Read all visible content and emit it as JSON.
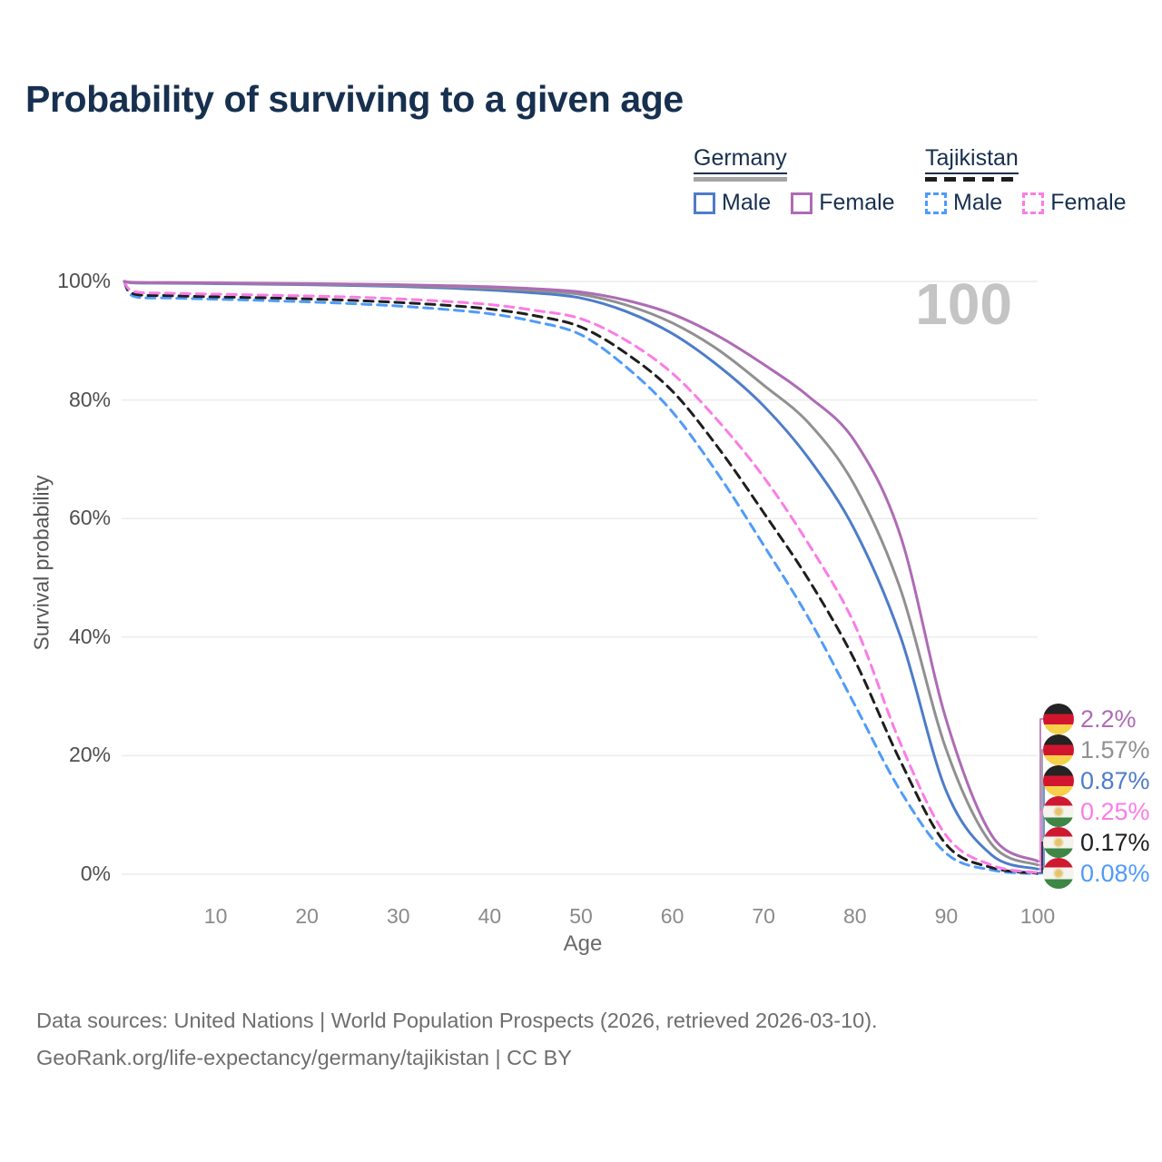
{
  "title": "Probability of surviving to a given age",
  "watermark_label": "100",
  "legend": {
    "groups": [
      {
        "label": "Germany",
        "line_style": "solid",
        "underline_color": "#a5a5a5",
        "items": [
          {
            "label": "Male",
            "color": "#4d7cc9",
            "dashed": false
          },
          {
            "label": "Female",
            "color": "#ae6bb5",
            "dashed": false
          }
        ]
      },
      {
        "label": "Tajikistan",
        "line_style": "dashed",
        "underline_color": "#1e1e1e",
        "items": [
          {
            "label": "Male",
            "color": "#4f9bfa",
            "dashed": true
          },
          {
            "label": "Female",
            "color": "#fb7ce5",
            "dashed": true
          }
        ]
      }
    ]
  },
  "chart_data": {
    "type": "line",
    "title": "Probability of surviving to a given age",
    "xlabel": "Age",
    "ylabel": "Survival probability",
    "xlim": [
      0,
      100
    ],
    "ylim": [
      0,
      100
    ],
    "x_ticks": [
      10,
      20,
      30,
      40,
      50,
      60,
      70,
      80,
      90,
      100
    ],
    "y_ticks": [
      0,
      20,
      40,
      60,
      80,
      100
    ],
    "y_tick_suffix": "%",
    "grid": "horizontal-only",
    "legend_position": "top-right",
    "x": [
      0,
      1,
      5,
      10,
      15,
      20,
      25,
      30,
      35,
      40,
      45,
      50,
      55,
      60,
      65,
      70,
      75,
      80,
      85,
      90,
      95,
      100
    ],
    "series": [
      {
        "id": "germany-female",
        "name": "Germany Female",
        "country": "Germany",
        "group": "Female",
        "color": "#ae6bb5",
        "dashed": false,
        "end_label": "2.2%",
        "flag": "germany",
        "values": [
          100,
          99.85,
          99.8,
          99.75,
          99.7,
          99.63,
          99.55,
          99.45,
          99.3,
          99.1,
          98.75,
          98.2,
          96.8,
          94.5,
          90.8,
          86.0,
          80.5,
          73.0,
          57.0,
          26.0,
          6.5,
          2.2
        ]
      },
      {
        "id": "germany-total",
        "name": "Germany",
        "country": "Germany",
        "group": "Both sexes",
        "color": "#909090",
        "dashed": false,
        "end_label": "1.57%",
        "flag": "germany",
        "values": [
          100,
          99.8,
          99.75,
          99.7,
          99.63,
          99.55,
          99.45,
          99.3,
          99.1,
          98.85,
          98.45,
          97.8,
          96.0,
          93.0,
          88.5,
          82.5,
          76.0,
          65.5,
          48.0,
          21.0,
          5.0,
          1.57
        ]
      },
      {
        "id": "germany-male",
        "name": "Germany Male",
        "country": "Germany",
        "group": "Male",
        "color": "#4d7cc9",
        "dashed": false,
        "end_label": "0.87%",
        "flag": "germany",
        "values": [
          100,
          99.75,
          99.7,
          99.62,
          99.55,
          99.45,
          99.32,
          99.15,
          98.9,
          98.55,
          98.05,
          97.2,
          94.9,
          91.2,
          85.8,
          79.0,
          70.0,
          58.0,
          40.0,
          14.0,
          3.2,
          0.87
        ]
      },
      {
        "id": "tajikistan-female",
        "name": "Tajikistan Female",
        "country": "Tajikistan",
        "group": "Female",
        "color": "#fb7ce5",
        "dashed": true,
        "end_label": "0.25%",
        "flag": "tajikistan",
        "values": [
          100,
          98.3,
          98.0,
          97.85,
          97.7,
          97.55,
          97.35,
          97.05,
          96.65,
          96.1,
          95.1,
          93.7,
          90.0,
          84.5,
          76.5,
          67.0,
          55.5,
          42.0,
          22.0,
          6.5,
          1.5,
          0.25
        ]
      },
      {
        "id": "tajikistan-total",
        "name": "Tajikistan",
        "country": "Tajikistan",
        "group": "Both sexes",
        "color": "#1e1e1e",
        "dashed": true,
        "end_label": "0.17%",
        "flag": "tajikistan",
        "values": [
          100,
          97.9,
          97.6,
          97.4,
          97.25,
          97.05,
          96.8,
          96.45,
          96.0,
          95.35,
          94.2,
          92.3,
          87.8,
          81.5,
          72.0,
          61.0,
          49.5,
          36.0,
          19.0,
          5.0,
          1.1,
          0.17
        ]
      },
      {
        "id": "tajikistan-male",
        "name": "Tajikistan Male",
        "country": "Tajikistan",
        "group": "Male",
        "color": "#4f9bfa",
        "dashed": true,
        "end_label": "0.08%",
        "flag": "tajikistan",
        "values": [
          100,
          97.5,
          97.2,
          97.0,
          96.8,
          96.55,
          96.25,
          95.85,
          95.3,
          94.55,
          93.2,
          91.0,
          85.5,
          78.0,
          67.5,
          55.5,
          43.0,
          28.5,
          14.0,
          3.5,
          0.7,
          0.08
        ]
      }
    ]
  },
  "footer": {
    "line1": "Data sources: United Nations | World Population Prospects (2026, retrieved 2026-03-10).",
    "line2": "GeoRank.org/life-expectancy/germany/tajikistan | CC BY"
  }
}
